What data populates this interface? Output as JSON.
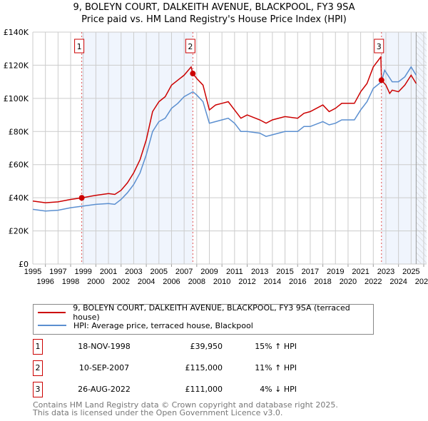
{
  "chart_data": {
    "type": "line",
    "title": "9, BOLEYN COURT, DALKEITH AVENUE, BLACKPOOL, FY3 9SA",
    "subtitle": "Price paid vs. HM Land Registry's House Price Index (HPI)",
    "xlim": [
      1995,
      2026
    ],
    "ylim": [
      0,
      140000
    ],
    "x_ticks": [
      "1995",
      "1996",
      "1997",
      "1998",
      "1999",
      "2000",
      "2001",
      "2002",
      "2003",
      "2004",
      "2005",
      "2006",
      "2007",
      "2008",
      "2009",
      "2010",
      "2011",
      "2012",
      "2013",
      "2014",
      "2015",
      "2016",
      "2017",
      "2018",
      "2019",
      "2020",
      "2021",
      "2022",
      "2023",
      "2024",
      "2025",
      "2026"
    ],
    "y_ticks": [
      {
        "v": 0,
        "label": "£0"
      },
      {
        "v": 20000,
        "label": "£20K"
      },
      {
        "v": 40000,
        "label": "£40K"
      },
      {
        "v": 60000,
        "label": "£60K"
      },
      {
        "v": 80000,
        "label": "£80K"
      },
      {
        "v": 100000,
        "label": "£100K"
      },
      {
        "v": 120000,
        "label": "£120K"
      },
      {
        "v": 140000,
        "label": "£140K"
      }
    ],
    "series": [
      {
        "name": "9, BOLEYN COURT, DALKEITH AVENUE, BLACKPOOL, FY3 9SA (terraced house)",
        "color": "#cc0000",
        "points": [
          [
            1995,
            38000
          ],
          [
            1996,
            37000
          ],
          [
            1997,
            37500
          ],
          [
            1998,
            39000
          ],
          [
            1998.88,
            39950
          ],
          [
            2000,
            41500
          ],
          [
            2001,
            42500
          ],
          [
            2001.5,
            42000
          ],
          [
            2002,
            44500
          ],
          [
            2002.5,
            49000
          ],
          [
            2003,
            55000
          ],
          [
            2003.5,
            63000
          ],
          [
            2004,
            75000
          ],
          [
            2004.5,
            92000
          ],
          [
            2005,
            98000
          ],
          [
            2005.5,
            101000
          ],
          [
            2006,
            108000
          ],
          [
            2006.5,
            111000
          ],
          [
            2007,
            114000
          ],
          [
            2007.55,
            119000
          ],
          [
            2007.69,
            115000
          ],
          [
            2008,
            112000
          ],
          [
            2008.5,
            108000
          ],
          [
            2009,
            93000
          ],
          [
            2009.5,
            96000
          ],
          [
            2010,
            97000
          ],
          [
            2010.5,
            98000
          ],
          [
            2011,
            93000
          ],
          [
            2011.5,
            88000
          ],
          [
            2012,
            90000
          ],
          [
            2013,
            87000
          ],
          [
            2013.5,
            85000
          ],
          [
            2014,
            87000
          ],
          [
            2015,
            89000
          ],
          [
            2016,
            88000
          ],
          [
            2016.5,
            91000
          ],
          [
            2017,
            92000
          ],
          [
            2018,
            96000
          ],
          [
            2018.5,
            92000
          ],
          [
            2019,
            94000
          ],
          [
            2019.5,
            97000
          ],
          [
            2020,
            97000
          ],
          [
            2020.5,
            97000
          ],
          [
            2021,
            104000
          ],
          [
            2021.5,
            109000
          ],
          [
            2022,
            119000
          ],
          [
            2022.6,
            125000
          ],
          [
            2022.65,
            111000
          ],
          [
            2023,
            108000
          ],
          [
            2023.3,
            103000
          ],
          [
            2023.5,
            105000
          ],
          [
            2024,
            104000
          ],
          [
            2024.5,
            108000
          ],
          [
            2025,
            114000
          ],
          [
            2025.4,
            109000
          ]
        ]
      },
      {
        "name": "HPI: Average price, terraced house, Blackpool",
        "color": "#5b8fd0",
        "points": [
          [
            1995,
            33000
          ],
          [
            1996,
            32000
          ],
          [
            1997,
            32500
          ],
          [
            1998,
            34000
          ],
          [
            1999,
            35000
          ],
          [
            2000,
            36000
          ],
          [
            2001,
            36500
          ],
          [
            2001.5,
            36000
          ],
          [
            2002,
            39000
          ],
          [
            2002.5,
            43000
          ],
          [
            2003,
            48000
          ],
          [
            2003.5,
            55000
          ],
          [
            2004,
            66000
          ],
          [
            2004.5,
            80000
          ],
          [
            2005,
            86000
          ],
          [
            2005.5,
            88000
          ],
          [
            2006,
            94000
          ],
          [
            2006.5,
            97000
          ],
          [
            2007,
            101000
          ],
          [
            2007.7,
            104000
          ],
          [
            2008,
            102000
          ],
          [
            2008.5,
            98000
          ],
          [
            2009,
            85000
          ],
          [
            2009.5,
            86000
          ],
          [
            2010,
            87000
          ],
          [
            2010.5,
            88000
          ],
          [
            2011,
            85000
          ],
          [
            2011.5,
            80000
          ],
          [
            2012,
            80000
          ],
          [
            2013,
            79000
          ],
          [
            2013.5,
            77000
          ],
          [
            2014,
            78000
          ],
          [
            2015,
            80000
          ],
          [
            2016,
            80000
          ],
          [
            2016.5,
            83000
          ],
          [
            2017,
            83000
          ],
          [
            2018,
            86000
          ],
          [
            2018.5,
            84000
          ],
          [
            2019,
            85000
          ],
          [
            2019.5,
            87000
          ],
          [
            2020,
            87000
          ],
          [
            2020.5,
            87000
          ],
          [
            2021,
            93000
          ],
          [
            2021.5,
            98000
          ],
          [
            2022,
            106000
          ],
          [
            2022.65,
            110000
          ],
          [
            2022.9,
            117000
          ],
          [
            2023.5,
            110000
          ],
          [
            2024,
            110000
          ],
          [
            2024.5,
            113000
          ],
          [
            2025,
            119000
          ],
          [
            2025.4,
            114000
          ]
        ]
      }
    ],
    "sales": [
      {
        "label": "1",
        "x": 1998.88,
        "y": 39950
      },
      {
        "label": "2",
        "x": 2007.69,
        "y": 115000
      },
      {
        "label": "3",
        "x": 2022.65,
        "y": 111000
      }
    ],
    "data_end": 2025.4
  },
  "legend": {
    "series1": "9, BOLEYN COURT, DALKEITH AVENUE, BLACKPOOL, FY3 9SA (terraced house)",
    "series2": "HPI: Average price, terraced house, Blackpool"
  },
  "transactions": [
    {
      "num": "1",
      "date": "18-NOV-1998",
      "price": "£39,950",
      "hpi": "15% ↑ HPI"
    },
    {
      "num": "2",
      "date": "10-SEP-2007",
      "price": "£115,000",
      "hpi": "11% ↑ HPI"
    },
    {
      "num": "3",
      "date": "26-AUG-2022",
      "price": "£111,000",
      "hpi": "4% ↓ HPI"
    }
  ],
  "footer": {
    "line1": "Contains HM Land Registry data © Crown copyright and database right 2025.",
    "line2": "This data is licensed under the Open Government Licence v3.0."
  }
}
